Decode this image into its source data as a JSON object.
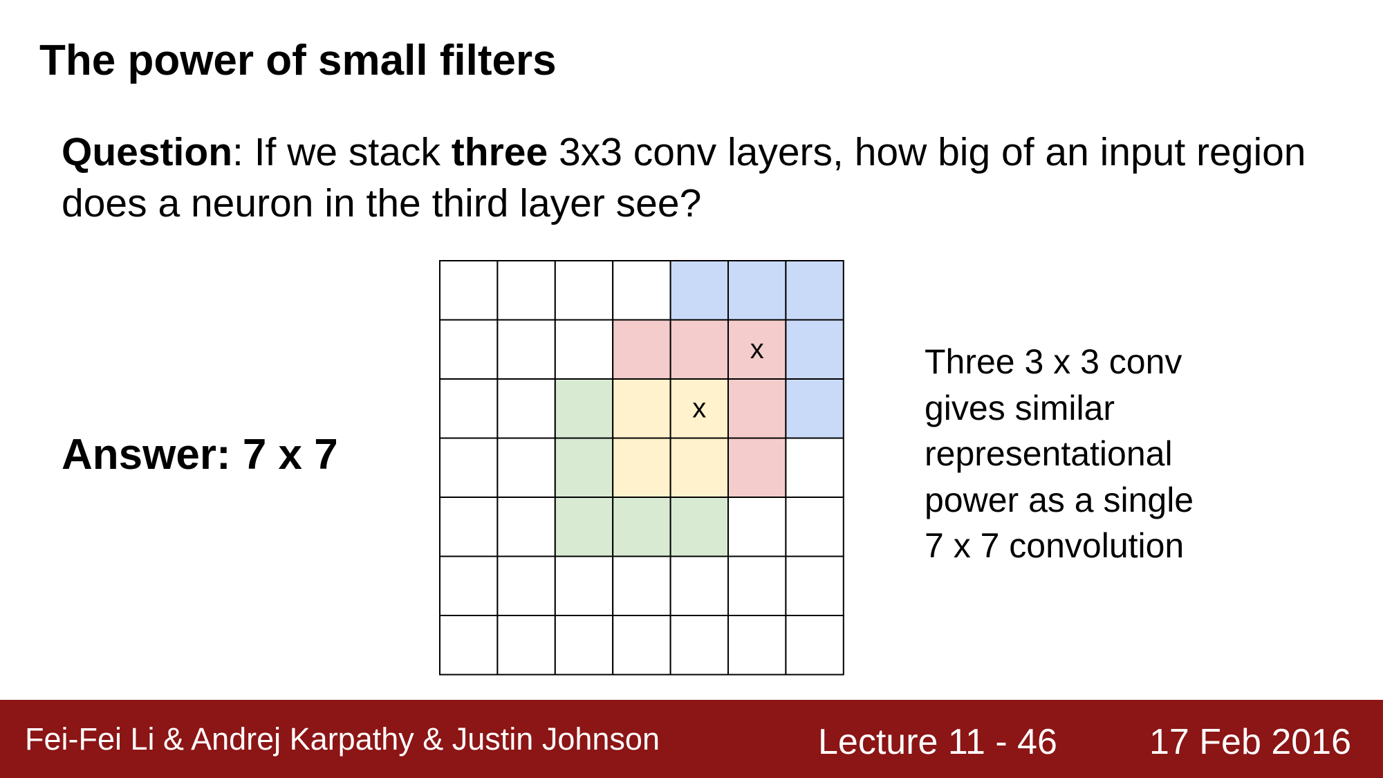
{
  "slide": {
    "title": "The power of small filters",
    "question": {
      "label": "Question",
      "part1": ": If we stack ",
      "emphasis": "three",
      "part2": " 3x3 conv layers, how big of an input region does a neuron in the third layer see?"
    },
    "answer": "Answer: 7 x 7",
    "side_text": [
      "Three 3 x 3 conv",
      "gives similar",
      "representational",
      "power as a single",
      "7 x 7 convolution"
    ]
  },
  "grid": {
    "rows": 7,
    "cols": 7,
    "colors": {
      "blue": "#c9daf8",
      "red": "#f4cccc",
      "yellow": "#fff2cc",
      "green": "#d9ead3",
      "line": "#000000"
    },
    "regions": [
      {
        "color": "blue",
        "cells": [
          [
            0,
            4
          ],
          [
            0,
            5
          ],
          [
            0,
            6
          ],
          [
            1,
            6
          ],
          [
            2,
            6
          ]
        ]
      },
      {
        "color": "red",
        "cells": [
          [
            1,
            3
          ],
          [
            1,
            4
          ],
          [
            1,
            5
          ],
          [
            2,
            5
          ],
          [
            3,
            5
          ]
        ]
      },
      {
        "color": "yellow",
        "cells": [
          [
            2,
            3
          ],
          [
            2,
            4
          ],
          [
            3,
            3
          ],
          [
            3,
            4
          ]
        ]
      },
      {
        "color": "green",
        "cells": [
          [
            2,
            2
          ],
          [
            3,
            2
          ],
          [
            4,
            2
          ],
          [
            4,
            3
          ],
          [
            4,
            4
          ]
        ]
      }
    ],
    "marks": [
      {
        "row": 1,
        "col": 5,
        "text": "x"
      },
      {
        "row": 2,
        "col": 4,
        "text": "x"
      }
    ]
  },
  "footer": {
    "background": "#8c1515",
    "authors": "Fei-Fei Li & Andrej Karpathy & Justin Johnson",
    "lecture": "Lecture 11 - 46",
    "date": "17 Feb 2016"
  }
}
